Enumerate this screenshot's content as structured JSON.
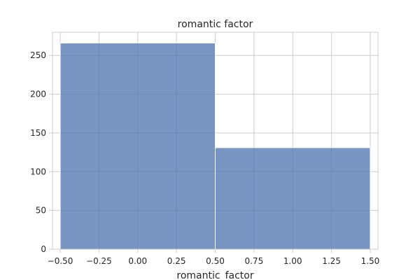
{
  "chart_data": {
    "type": "bar",
    "title": "romantic factor",
    "xlabel": "romantic_factor",
    "ylabel": "",
    "bins": [
      {
        "x0": -0.5,
        "x1": 0.5,
        "value": 266
      },
      {
        "x0": 0.5,
        "x1": 1.5,
        "value": 131
      }
    ],
    "xlim": [
      -0.55,
      1.55
    ],
    "ylim": [
      0,
      280
    ],
    "xticks": [
      -0.5,
      -0.25,
      0.0,
      0.25,
      0.5,
      0.75,
      1.0,
      1.25,
      1.5
    ],
    "xtick_labels": [
      "−0.50",
      "−0.25",
      "0.00",
      "0.25",
      "0.50",
      "0.75",
      "1.00",
      "1.25",
      "1.50"
    ],
    "yticks": [
      0,
      50,
      100,
      150,
      200,
      250
    ],
    "ytick_labels": [
      "0",
      "50",
      "100",
      "150",
      "200",
      "250"
    ],
    "grid": true,
    "colors": {
      "bar": "#4c72b0",
      "grid": "#cccccc",
      "text": "#262626"
    }
  }
}
